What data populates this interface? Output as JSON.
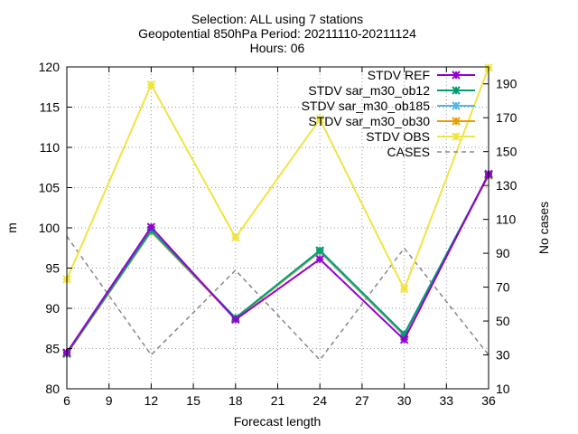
{
  "chart_data": {
    "type": "line",
    "title_lines": [
      "Selection: ALL using     7 stations",
      "Geopotential 850hPa   Period: 20211110-20211124",
      "Hours: 06"
    ],
    "xlabel": "Forecast length",
    "ylabel": "m",
    "y2label": "No cases",
    "x": [
      6,
      12,
      18,
      24,
      30,
      36
    ],
    "xticks": [
      6,
      9,
      12,
      15,
      18,
      21,
      24,
      27,
      30,
      33,
      36
    ],
    "xlim": [
      6,
      36
    ],
    "ylim": [
      80,
      120
    ],
    "yticks": [
      80,
      85,
      90,
      95,
      100,
      105,
      110,
      115,
      120
    ],
    "y2lim": [
      10,
      200
    ],
    "y2ticks": [
      10,
      30,
      50,
      70,
      90,
      110,
      130,
      150,
      170,
      190
    ],
    "grid": true,
    "legend_position": "top-right",
    "series": [
      {
        "name": "STDV REF",
        "axis": "y1",
        "color": "#9400d3",
        "dash": false,
        "marker": "x",
        "values": [
          84.5,
          100.1,
          88.6,
          96.1,
          86.1,
          106.7
        ]
      },
      {
        "name": "STDV sar_m30_ob12",
        "axis": "y1",
        "color": "#009e73",
        "dash": false,
        "marker": "x",
        "values": [
          84.4,
          99.7,
          88.8,
          97.2,
          86.8,
          106.6
        ]
      },
      {
        "name": "STDV sar_m30_ob185",
        "axis": "y1",
        "color": "#56b4e9",
        "dash": false,
        "marker": "x",
        "values": [
          84.4,
          99.6,
          88.8,
          97.1,
          86.7,
          106.6
        ]
      },
      {
        "name": "STDV sar_m30_ob30",
        "axis": "y1",
        "color": "#e69f00",
        "dash": false,
        "marker": "x",
        "values": [
          84.3,
          99.5,
          88.7,
          97.0,
          86.6,
          106.5
        ]
      },
      {
        "name": "STDV OBS",
        "axis": "y1",
        "color": "#f0e442",
        "dash": false,
        "marker": "x",
        "values": [
          93.6,
          117.8,
          98.8,
          113.5,
          92.4,
          119.9
        ]
      },
      {
        "name": "CASES",
        "axis": "y2",
        "color": "#888888",
        "dash": true,
        "marker": "none",
        "values": [
          100,
          30,
          80,
          27,
          93,
          30
        ]
      }
    ]
  }
}
